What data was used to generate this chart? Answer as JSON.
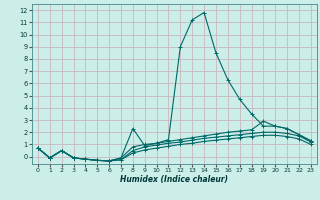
{
  "xlabel": "Humidex (Indice chaleur)",
  "background_color": "#cceee8",
  "grid_color": "#c8b8c0",
  "line_color": "#006868",
  "xlim": [
    -0.5,
    23.5
  ],
  "ylim": [
    -0.6,
    12.5
  ],
  "xticks": [
    0,
    1,
    2,
    3,
    4,
    5,
    6,
    7,
    8,
    9,
    10,
    11,
    12,
    13,
    14,
    15,
    16,
    17,
    18,
    19,
    20,
    21,
    22,
    23
  ],
  "yticks": [
    0,
    1,
    2,
    3,
    4,
    5,
    6,
    7,
    8,
    9,
    10,
    11,
    12
  ],
  "series": [
    {
      "x": [
        0,
        1,
        2,
        3,
        4,
        5,
        6,
        7,
        8,
        9,
        10,
        11,
        12,
        13,
        14,
        15,
        16,
        17,
        18,
        19,
        20,
        21,
        22,
        23
      ],
      "y": [
        0.7,
        -0.1,
        0.5,
        -0.1,
        -0.2,
        -0.3,
        -0.35,
        -0.1,
        2.3,
        0.9,
        1.1,
        1.4,
        9.0,
        11.2,
        11.8,
        8.5,
        6.3,
        4.7,
        3.5,
        2.5,
        2.5,
        2.3,
        1.8,
        1.3
      ]
    },
    {
      "x": [
        0,
        1,
        2,
        3,
        4,
        5,
        6,
        7,
        8,
        9,
        10,
        11,
        12,
        13,
        14,
        15,
        16,
        17,
        18,
        19,
        20,
        21,
        22,
        23
      ],
      "y": [
        0.7,
        -0.1,
        0.5,
        -0.1,
        -0.2,
        -0.3,
        -0.35,
        -0.1,
        0.8,
        1.0,
        1.1,
        1.25,
        1.4,
        1.55,
        1.7,
        1.85,
        2.0,
        2.1,
        2.2,
        2.9,
        2.5,
        2.3,
        1.8,
        1.3
      ]
    },
    {
      "x": [
        0,
        1,
        2,
        3,
        4,
        5,
        6,
        7,
        8,
        9,
        10,
        11,
        12,
        13,
        14,
        15,
        16,
        17,
        18,
        19,
        20,
        21,
        22,
        23
      ],
      "y": [
        0.7,
        -0.1,
        0.5,
        -0.1,
        -0.2,
        -0.3,
        -0.35,
        -0.25,
        0.5,
        0.8,
        0.95,
        1.1,
        1.2,
        1.35,
        1.5,
        1.6,
        1.7,
        1.8,
        1.9,
        2.0,
        2.0,
        1.9,
        1.7,
        1.2
      ]
    },
    {
      "x": [
        0,
        1,
        2,
        3,
        4,
        5,
        6,
        7,
        8,
        9,
        10,
        11,
        12,
        13,
        14,
        15,
        16,
        17,
        18,
        19,
        20,
        21,
        22,
        23
      ],
      "y": [
        0.7,
        -0.1,
        0.5,
        -0.1,
        -0.2,
        -0.3,
        -0.35,
        -0.25,
        0.3,
        0.55,
        0.7,
        0.85,
        1.0,
        1.1,
        1.25,
        1.35,
        1.45,
        1.55,
        1.65,
        1.75,
        1.75,
        1.65,
        1.45,
        1.0
      ]
    }
  ]
}
